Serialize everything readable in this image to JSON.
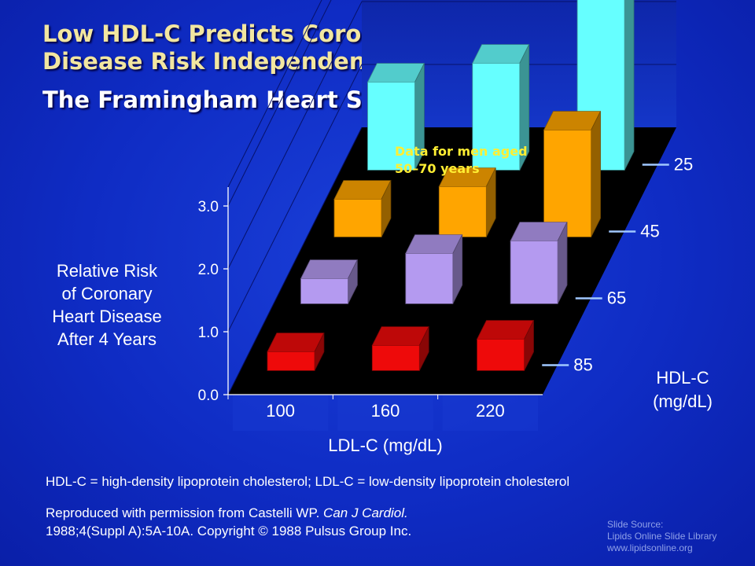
{
  "title": {
    "line1": "Low HDL-C Predicts Coronary Heart",
    "line2": "Disease Risk Independent of LDL-C:",
    "subtitle": "The Framingham Heart Study"
  },
  "chart_data": {
    "type": "bar",
    "subtype": "3d-grouped",
    "ylabel_lines": [
      "Relative Risk",
      "of Coronary",
      "Heart Disease",
      "After 4 Years"
    ],
    "xlabel": "LDL-C (mg/dL)",
    "zlabel_lines": [
      "HDL-C",
      "(mg/dL)"
    ],
    "categories": [
      "100",
      "160",
      "220"
    ],
    "yticks": [
      "0.0",
      "1.0",
      "2.0",
      "3.0"
    ],
    "ylim": [
      0,
      3.3
    ],
    "note_lines": [
      "Data for men aged",
      "50–70 years"
    ],
    "series": [
      {
        "name": "85",
        "color": "#ee0a0a",
        "values": [
          0.3,
          0.4,
          0.5
        ]
      },
      {
        "name": "65",
        "color": "#b49af0",
        "values": [
          0.4,
          0.8,
          1.0
        ]
      },
      {
        "name": "45",
        "color": "#ffa500",
        "values": [
          0.6,
          0.8,
          1.7
        ]
      },
      {
        "name": "25",
        "color": "#66ffff",
        "values": [
          1.4,
          1.7,
          2.8
        ]
      }
    ]
  },
  "footer": {
    "abbreviations": "HDL-C = high-density lipoprotein cholesterol; LDL-C = low-density lipoprotein cholesterol",
    "citation_prefix": "Reproduced with permission from Castelli WP. ",
    "citation_journal": "Can J Cardiol.",
    "citation_line2": "1988;4(Suppl A):5A-10A. Copyright © 1988 Pulsus Group Inc.",
    "source_lines": [
      "Slide Source:",
      "Lipids Online Slide Library",
      "www.lipidsonline.org"
    ]
  }
}
